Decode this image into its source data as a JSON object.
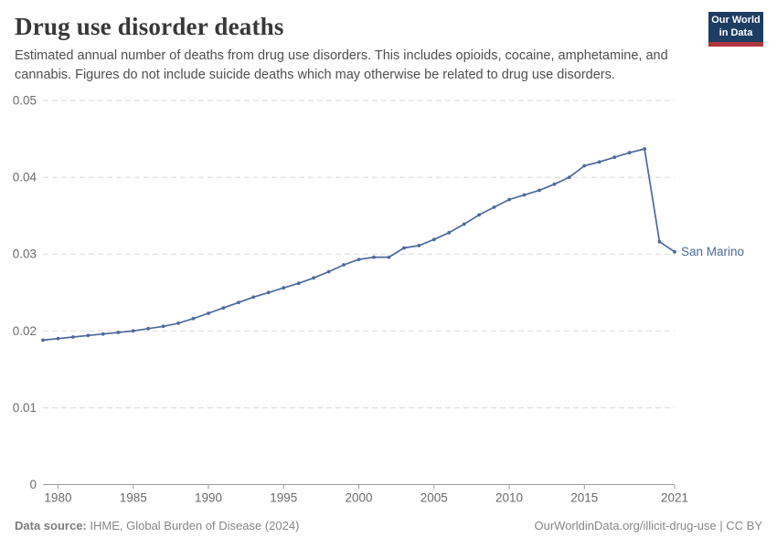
{
  "header": {
    "title": "Drug use disorder deaths",
    "subtitle": "Estimated annual number of deaths from drug use disorders. This includes opioids, cocaine, amphetamine, and cannabis. Figures do not include suicide deaths which may otherwise be related to drug use disorders.",
    "logo": {
      "line1": "Our World",
      "line2": "in Data"
    }
  },
  "chart_data": {
    "type": "line",
    "title": "Drug use disorder deaths",
    "xlabel": "",
    "ylabel": "",
    "xlim": [
      1979,
      2021
    ],
    "ylim": [
      0,
      0.05
    ],
    "grid": "horizontal-dashed",
    "legend_position": "end-of-line",
    "x_ticks": [
      1980,
      1985,
      1990,
      1995,
      2000,
      2005,
      2010,
      2015,
      2021
    ],
    "y_ticks": [
      {
        "v": 0,
        "label": "0"
      },
      {
        "v": 0.01,
        "label": "0.01"
      },
      {
        "v": 0.02,
        "label": "0.02"
      },
      {
        "v": 0.03,
        "label": "0.03"
      },
      {
        "v": 0.04,
        "label": "0.04"
      },
      {
        "v": 0.05,
        "label": "0.05"
      }
    ],
    "x": [
      1979,
      1980,
      1981,
      1982,
      1983,
      1984,
      1985,
      1986,
      1987,
      1988,
      1989,
      1990,
      1991,
      1992,
      1993,
      1994,
      1995,
      1996,
      1997,
      1998,
      1999,
      2000,
      2001,
      2002,
      2003,
      2004,
      2005,
      2006,
      2007,
      2008,
      2009,
      2010,
      2011,
      2012,
      2013,
      2014,
      2015,
      2016,
      2017,
      2018,
      2019,
      2020,
      2021
    ],
    "series": [
      {
        "name": "San Marino",
        "values": [
          0.0188,
          0.019,
          0.0192,
          0.0194,
          0.0196,
          0.0198,
          0.02,
          0.0203,
          0.0206,
          0.021,
          0.0216,
          0.0223,
          0.023,
          0.0237,
          0.0244,
          0.025,
          0.0256,
          0.0262,
          0.0269,
          0.0277,
          0.0286,
          0.0293,
          0.0296,
          0.0296,
          0.0308,
          0.0311,
          0.0319,
          0.0328,
          0.0339,
          0.0351,
          0.0361,
          0.0371,
          0.0377,
          0.0383,
          0.0391,
          0.04,
          0.0415,
          0.042,
          0.0426,
          0.0432,
          0.0437,
          0.0316,
          0.0303
        ]
      }
    ]
  },
  "colors": {
    "line": "#4C6A9C",
    "entity_label": "#4C6A9C",
    "grid": "#dadada",
    "axis": "#9c9c9c",
    "tick_text": "#6b6b6b",
    "logo_bg": "#1d3d63",
    "logo_stripe": "#b0353c"
  },
  "footer": {
    "source_label": "Data source:",
    "source_text": " IHME, Global Burden of Disease (2024)",
    "credit": "OurWorldinData.org/illicit-drug-use | CC BY"
  }
}
